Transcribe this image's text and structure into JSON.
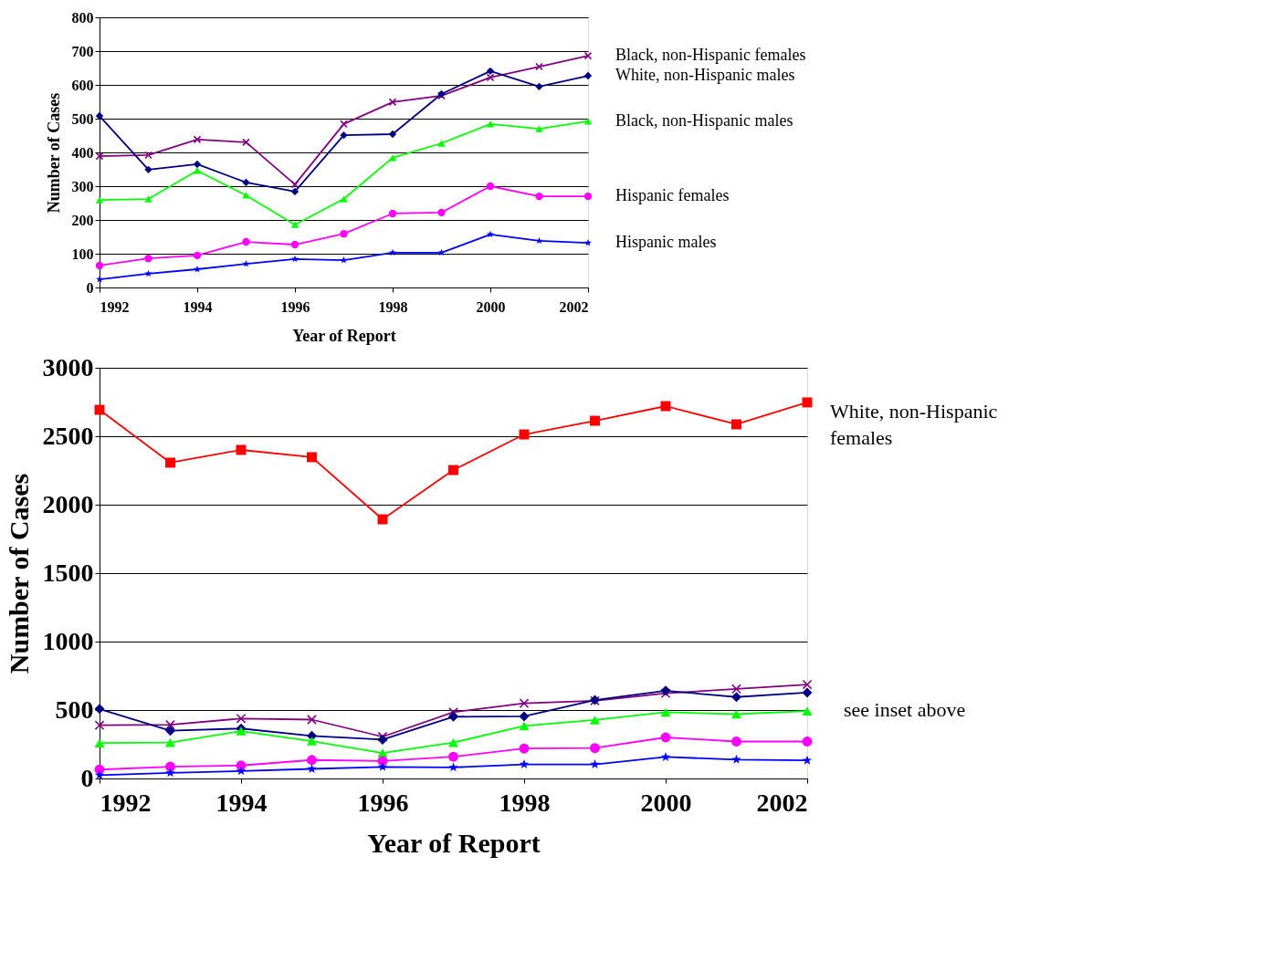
{
  "chart_data": [
    {
      "type": "line",
      "xlabel": "Year of Report",
      "ylabel": "Number of Cases",
      "x": [
        1992,
        1993,
        1994,
        1995,
        1996,
        1997,
        1998,
        1999,
        2000,
        2001,
        2002
      ],
      "xlim": [
        1992,
        2002
      ],
      "xticks": [
        1992,
        1994,
        1996,
        1998,
        2000,
        2002
      ],
      "ylim": [
        0,
        800
      ],
      "yticks": [
        0,
        100,
        200,
        300,
        400,
        500,
        600,
        700,
        800
      ],
      "grid": "y",
      "series": [
        {
          "name": "Black, non-Hispanic females",
          "color": "#800080",
          "marker": "cross",
          "values": [
            389,
            392,
            438,
            430,
            305,
            484,
            549,
            568,
            622,
            654,
            686
          ]
        },
        {
          "name": "White, non-Hispanic males",
          "color": "#000080",
          "marker": "diamond",
          "values": [
            508,
            349,
            365,
            311,
            284,
            451,
            454,
            573,
            641,
            595,
            627
          ]
        },
        {
          "name": "Black, non-Hispanic males",
          "color": "#00ff00",
          "marker": "triangle",
          "values": [
            259,
            262,
            346,
            273,
            186,
            262,
            384,
            427,
            484,
            470,
            492
          ]
        },
        {
          "name": "Hispanic females",
          "color": "#ff00ff",
          "marker": "circle",
          "values": [
            65,
            86,
            95,
            135,
            127,
            159,
            219,
            222,
            300,
            270,
            270
          ]
        },
        {
          "name": "Hispanic males",
          "color": "#0000ff",
          "marker": "star",
          "values": [
            24,
            41,
            54,
            70,
            84,
            81,
            103,
            103,
            157,
            138,
            132
          ]
        }
      ]
    },
    {
      "type": "line",
      "xlabel": "Year of Report",
      "ylabel": "Number of Cases",
      "x": [
        1992,
        1993,
        1994,
        1995,
        1996,
        1997,
        1998,
        1999,
        2000,
        2001,
        2002
      ],
      "xlim": [
        1992,
        2002
      ],
      "xticks": [
        1992,
        1994,
        1996,
        1998,
        2000,
        2002
      ],
      "ylim": [
        0,
        3000
      ],
      "yticks": [
        0,
        500,
        1000,
        1500,
        2000,
        2500,
        3000
      ],
      "grid": "y",
      "annotations": [
        {
          "text": "see inset above",
          "x": 2002,
          "y": 500
        }
      ],
      "series": [
        {
          "name": "White, non-Hispanic females",
          "color": "#ff0000",
          "marker": "square",
          "values": [
            2693,
            2307,
            2400,
            2347,
            1893,
            2253,
            2513,
            2613,
            2720,
            2587,
            2747
          ]
        },
        {
          "color": "#800080",
          "marker": "cross",
          "values": [
            389,
            392,
            438,
            430,
            305,
            484,
            549,
            568,
            622,
            654,
            686
          ]
        },
        {
          "color": "#000080",
          "marker": "diamond",
          "values": [
            508,
            349,
            365,
            311,
            284,
            451,
            454,
            573,
            641,
            595,
            627
          ]
        },
        {
          "color": "#00ff00",
          "marker": "triangle",
          "values": [
            259,
            262,
            346,
            273,
            186,
            262,
            384,
            427,
            484,
            470,
            492
          ]
        },
        {
          "color": "#ff00ff",
          "marker": "circle",
          "values": [
            65,
            86,
            95,
            135,
            127,
            159,
            219,
            222,
            300,
            270,
            270
          ]
        },
        {
          "color": "#0000ff",
          "marker": "star",
          "values": [
            24,
            41,
            54,
            70,
            84,
            81,
            103,
            103,
            157,
            138,
            132
          ]
        }
      ]
    }
  ]
}
